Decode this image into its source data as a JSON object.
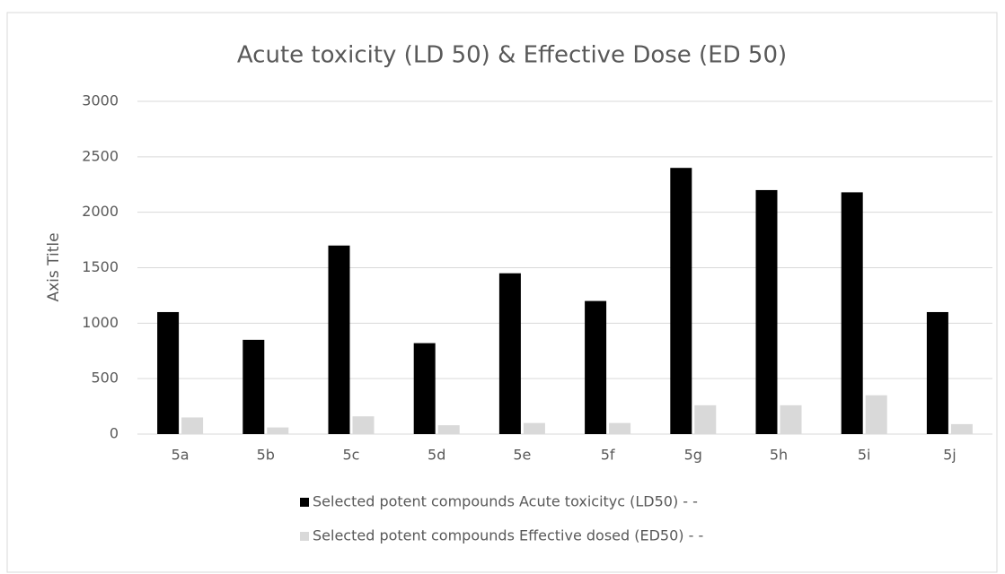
{
  "chart_data": {
    "type": "bar",
    "title": "Acute toxicity (LD 50) & Effective Dose (ED 50)",
    "y_label": "Axis Title",
    "categories": [
      "5a",
      "5b",
      "5c",
      "5d",
      "5e",
      "5f",
      "5g",
      "5h",
      "5i",
      "5j"
    ],
    "series": [
      {
        "name": "Selected potent compounds Acute toxicityc (LD50) - -",
        "color": "#000000",
        "values": [
          1100,
          850,
          1700,
          820,
          1450,
          1200,
          2400,
          2200,
          2180,
          1100
        ]
      },
      {
        "name": "Selected potent compounds Effective dosed (ED50) - -",
        "color": "#d9d9d9",
        "values": [
          150,
          60,
          160,
          80,
          100,
          100,
          260,
          260,
          350,
          90
        ]
      }
    ],
    "ylim": [
      0,
      3000
    ],
    "yticks": [
      0,
      500,
      1000,
      1500,
      2000,
      2500,
      3000
    ],
    "grid": true,
    "legend": "bottom"
  }
}
